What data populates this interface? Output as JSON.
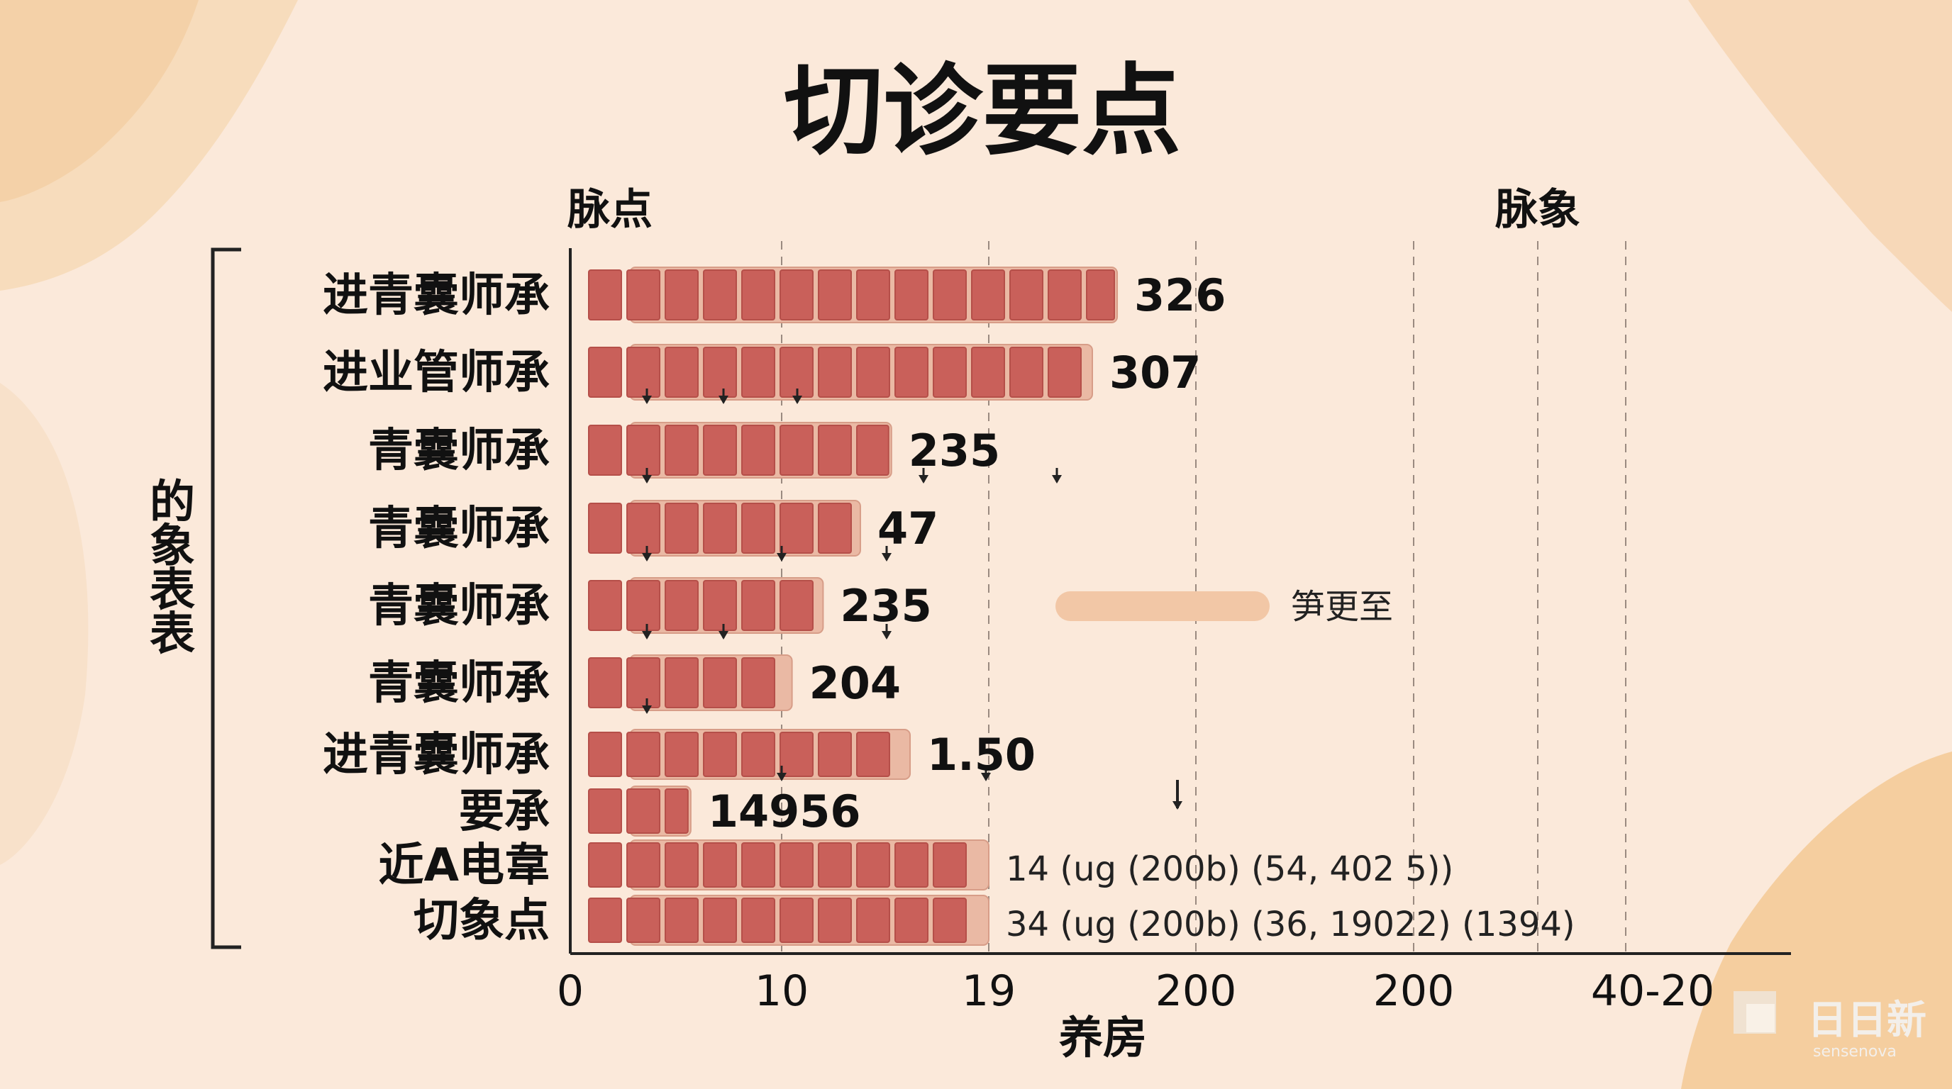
{
  "title": "切诊要点",
  "corner_left": "脉点",
  "corner_right": "脉象",
  "watermark": {
    "name": "日日新",
    "sub": "sensenova"
  },
  "chart_data": {
    "type": "bar",
    "orientation": "horizontal",
    "title": "切诊要点",
    "xlabel": "养房",
    "ylabel": "的象表表",
    "x_ticks": [
      "0",
      "10",
      "19",
      "200",
      "200",
      "40-20"
    ],
    "grid": "vertical-dashed",
    "categories": [
      "进青囊师承",
      "进业管师承",
      "青囊师承",
      "青囊师承",
      "青囊师承",
      "青囊师承",
      "进青囊师承",
      "要承",
      "近A电韋",
      "切象点"
    ],
    "value_labels": [
      "326",
      "307",
      "235",
      "47",
      "235",
      "204",
      "1.50",
      "14956",
      "14 (ug (200b) (54, 402 5))",
      "34 (ug (200b) (36, 19022) (1394)"
    ],
    "bar_lengths_on_axis": [
      2.62,
      2.5,
      1.53,
      1.38,
      1.2,
      1.05,
      1.62,
      0.57,
      2.0,
      2.0
    ],
    "side_note": "笋更至"
  }
}
